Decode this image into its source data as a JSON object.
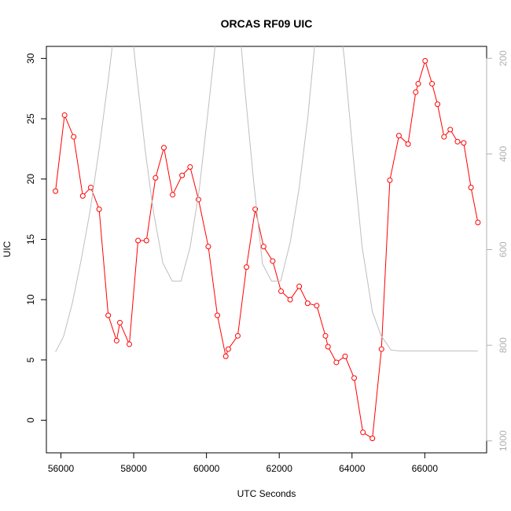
{
  "chart_data": {
    "type": "line",
    "title": "ORCAS RF09 UIC",
    "xlabel": "UTC Seconds",
    "ylabel": "UIC",
    "xlim": [
      55600,
      67700
    ],
    "ylim": [
      -2.7,
      31.0
    ],
    "y2lim": [
      1025,
      175
    ],
    "y2_inverted": true,
    "grid": false,
    "x_ticks": [
      56000,
      58000,
      60000,
      62000,
      64000,
      66000
    ],
    "x_tick_labels": [
      "56000",
      "58000",
      "60000",
      "62000",
      "64000",
      "66000"
    ],
    "y_ticks": [
      0,
      5,
      10,
      15,
      20,
      25,
      30
    ],
    "y_tick_labels": [
      "0",
      "5",
      "10",
      "15",
      "20",
      "25",
      "30"
    ],
    "y2_ticks": [
      200,
      400,
      600,
      800,
      1000
    ],
    "y2_tick_labels": [
      "200",
      "400",
      "600",
      "800",
      "1000"
    ],
    "series": [
      {
        "axis": "left",
        "color": "#ff0000",
        "marker": "open-circle",
        "x": [
          55850,
          56100,
          56350,
          56600,
          56820,
          57050,
          57300,
          57530,
          57620,
          57880,
          58120,
          58350,
          58600,
          58830,
          59070,
          59330,
          59550,
          59780,
          60050,
          60300,
          60530,
          60600,
          60860,
          61100,
          61340,
          61570,
          61820,
          62050,
          62300,
          62550,
          62780,
          63030,
          63270,
          63340,
          63570,
          63810,
          64060,
          64300,
          64560,
          64810,
          65040,
          65290,
          65540,
          65750,
          65820,
          66010,
          66200,
          66350,
          66530,
          66700,
          66900,
          67070,
          67270,
          67460
        ],
        "y": [
          19.0,
          25.3,
          23.5,
          18.6,
          19.3,
          17.5,
          8.7,
          6.6,
          8.1,
          6.3,
          14.9,
          14.9,
          20.1,
          22.6,
          18.7,
          20.3,
          21.0,
          18.3,
          14.4,
          8.7,
          5.3,
          5.9,
          7.0,
          12.7,
          17.5,
          14.4,
          13.2,
          10.7,
          10.0,
          11.1,
          9.7,
          9.5,
          7.0,
          6.1,
          4.8,
          5.3,
          3.5,
          -1.0,
          -1.5,
          5.9,
          19.9,
          23.6,
          22.9,
          27.2,
          27.9,
          29.8,
          27.9,
          26.2,
          23.5,
          24.1,
          23.1,
          23.0,
          19.3,
          16.4
        ]
      },
      {
        "axis": "right",
        "color": "#bebebe",
        "marker": "none",
        "x": [
          55850,
          56070,
          56320,
          56560,
          56800,
          57050,
          57310,
          57550,
          57800,
          58030,
          58320,
          58540,
          58800,
          59060,
          59300,
          59550,
          59800,
          60050,
          60300,
          60550,
          60820,
          61050,
          61300,
          61540,
          61790,
          62040,
          62300,
          62540,
          62790,
          63040,
          63280,
          63540,
          63790,
          64040,
          64280,
          64560,
          64800,
          65070,
          65300,
          65550,
          65800,
          66040,
          66300,
          66540,
          66780,
          67040,
          67260,
          67460
        ],
        "y": [
          814,
          782,
          710,
          620,
          520,
          390,
          240,
          85,
          10,
          200,
          395,
          520,
          628,
          666,
          666,
          595,
          475,
          305,
          130,
          40,
          50,
          260,
          460,
          630,
          666,
          666,
          585,
          475,
          320,
          120,
          40,
          50,
          200,
          410,
          595,
          730,
          780,
          810,
          812,
          812,
          812,
          812,
          812,
          812,
          812,
          812,
          812,
          812
        ]
      }
    ]
  }
}
